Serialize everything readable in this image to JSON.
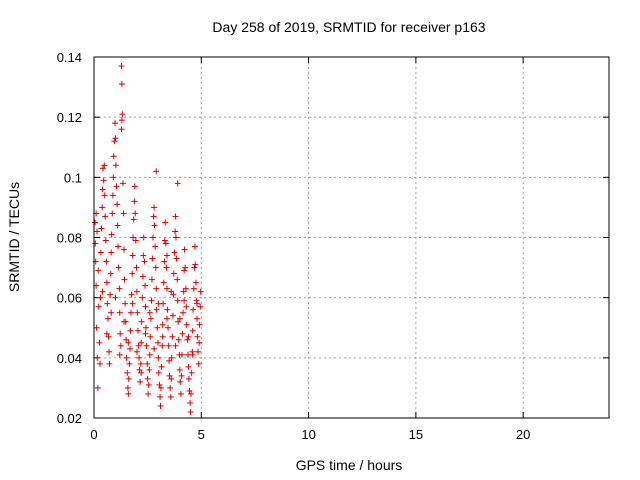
{
  "chart_data": {
    "type": "scatter",
    "title": "Day 258 of 2019, SRMTID for receiver p163",
    "xlabel": "GPS time / hours",
    "ylabel": "SRMTID / TECUs",
    "xlim": [
      0,
      24
    ],
    "ylim": [
      0.02,
      0.14
    ],
    "xticks": [
      0,
      5,
      10,
      15,
      20
    ],
    "xtick_labels": [
      "0",
      "5",
      "10",
      "15",
      "20"
    ],
    "yticks": [
      0.02,
      0.04,
      0.06,
      0.08,
      0.1,
      0.12,
      0.14
    ],
    "ytick_labels": [
      "0.02",
      "0.04",
      "0.06",
      "0.08",
      "0.1",
      "0.12",
      "0.14"
    ],
    "grid": true,
    "marker": "+",
    "color": "#dd0000",
    "series": [
      {
        "name": "p163",
        "points": [
          [
            0.05,
            0.085
          ],
          [
            0.08,
            0.072
          ],
          [
            0.1,
            0.064
          ],
          [
            0.12,
            0.05
          ],
          [
            0.15,
            0.04
          ],
          [
            0.18,
            0.03
          ],
          [
            0.06,
            0.078
          ],
          [
            0.1,
            0.088
          ],
          [
            0.14,
            0.082
          ],
          [
            0.2,
            0.069
          ],
          [
            0.22,
            0.057
          ],
          [
            0.25,
            0.045
          ],
          [
            0.28,
            0.038
          ],
          [
            0.3,
            0.06
          ],
          [
            0.32,
            0.075
          ],
          [
            0.35,
            0.083
          ],
          [
            0.38,
            0.09
          ],
          [
            0.4,
            0.096
          ],
          [
            0.42,
            0.103
          ],
          [
            0.45,
            0.099
          ],
          [
            0.48,
            0.104
          ],
          [
            0.5,
            0.094
          ],
          [
            0.52,
            0.087
          ],
          [
            0.55,
            0.079
          ],
          [
            0.58,
            0.072
          ],
          [
            0.6,
            0.065
          ],
          [
            0.62,
            0.058
          ],
          [
            0.65,
            0.053
          ],
          [
            0.68,
            0.047
          ],
          [
            0.7,
            0.042
          ],
          [
            0.72,
            0.038
          ],
          [
            0.75,
            0.061
          ],
          [
            0.78,
            0.068
          ],
          [
            0.8,
            0.075
          ],
          [
            0.82,
            0.081
          ],
          [
            0.85,
            0.088
          ],
          [
            0.88,
            0.094
          ],
          [
            0.9,
            0.1
          ],
          [
            0.92,
            0.107
          ],
          [
            0.95,
            0.112
          ],
          [
            0.98,
            0.118
          ],
          [
            1.0,
            0.113
          ],
          [
            1.02,
            0.104
          ],
          [
            1.05,
            0.097
          ],
          [
            1.08,
            0.091
          ],
          [
            1.1,
            0.084
          ],
          [
            1.12,
            0.077
          ],
          [
            1.15,
            0.07
          ],
          [
            1.18,
            0.063
          ],
          [
            1.2,
            0.055
          ],
          [
            1.22,
            0.048
          ],
          [
            1.25,
            0.044
          ],
          [
            1.28,
            0.116
          ],
          [
            1.3,
            0.119
          ],
          [
            1.32,
            0.121
          ],
          [
            1.3,
            0.131
          ],
          [
            1.28,
            0.137
          ],
          [
            1.35,
            0.098
          ],
          [
            1.38,
            0.088
          ],
          [
            1.4,
            0.076
          ],
          [
            1.42,
            0.066
          ],
          [
            1.45,
            0.058
          ],
          [
            1.48,
            0.052
          ],
          [
            1.5,
            0.046
          ],
          [
            1.52,
            0.04
          ],
          [
            1.55,
            0.035
          ],
          [
            1.58,
            0.03
          ],
          [
            1.6,
            0.028
          ],
          [
            1.62,
            0.033
          ],
          [
            1.65,
            0.038
          ],
          [
            1.68,
            0.043
          ],
          [
            1.7,
            0.049
          ],
          [
            1.72,
            0.055
          ],
          [
            1.75,
            0.061
          ],
          [
            1.78,
            0.068
          ],
          [
            1.8,
            0.074
          ],
          [
            1.82,
            0.08
          ],
          [
            1.85,
            0.086
          ],
          [
            1.88,
            0.092
          ],
          [
            1.9,
            0.097
          ],
          [
            1.92,
            0.088
          ],
          [
            1.95,
            0.079
          ],
          [
            1.98,
            0.07
          ],
          [
            2.0,
            0.062
          ],
          [
            2.02,
            0.055
          ],
          [
            2.05,
            0.049
          ],
          [
            2.08,
            0.044
          ],
          [
            2.1,
            0.04
          ],
          [
            2.12,
            0.036
          ],
          [
            2.15,
            0.032
          ],
          [
            2.18,
            0.038
          ],
          [
            2.2,
            0.045
          ],
          [
            2.22,
            0.052
          ],
          [
            2.25,
            0.06
          ],
          [
            2.28,
            0.067
          ],
          [
            2.3,
            0.074
          ],
          [
            2.32,
            0.08
          ],
          [
            2.35,
            0.072
          ],
          [
            2.38,
            0.064
          ],
          [
            2.4,
            0.057
          ],
          [
            2.42,
            0.05
          ],
          [
            2.45,
            0.044
          ],
          [
            2.48,
            0.038
          ],
          [
            2.5,
            0.033
          ],
          [
            2.52,
            0.028
          ],
          [
            2.55,
            0.031
          ],
          [
            2.58,
            0.036
          ],
          [
            2.6,
            0.041
          ],
          [
            2.62,
            0.047
          ],
          [
            2.65,
            0.053
          ],
          [
            2.68,
            0.059
          ],
          [
            2.7,
            0.066
          ],
          [
            2.72,
            0.073
          ],
          [
            2.75,
            0.08
          ],
          [
            2.78,
            0.087
          ],
          [
            2.8,
            0.09
          ],
          [
            2.82,
            0.084
          ],
          [
            2.85,
            0.077
          ],
          [
            2.88,
            0.07
          ],
          [
            2.9,
            0.063
          ],
          [
            2.92,
            0.056
          ],
          [
            2.95,
            0.05
          ],
          [
            2.98,
            0.045
          ],
          [
            3.0,
            0.04
          ],
          [
            3.02,
            0.035
          ],
          [
            3.05,
            0.031
          ],
          [
            3.08,
            0.027
          ],
          [
            3.1,
            0.024
          ],
          [
            3.12,
            0.03
          ],
          [
            3.15,
            0.037
          ],
          [
            3.18,
            0.044
          ],
          [
            3.2,
            0.051
          ],
          [
            3.22,
            0.058
          ],
          [
            3.25,
            0.065
          ],
          [
            3.28,
            0.072
          ],
          [
            3.3,
            0.079
          ],
          [
            3.32,
            0.085
          ],
          [
            3.35,
            0.078
          ],
          [
            3.38,
            0.07
          ],
          [
            3.4,
            0.063
          ],
          [
            3.42,
            0.056
          ],
          [
            3.45,
            0.05
          ],
          [
            3.48,
            0.044
          ],
          [
            3.5,
            0.039
          ],
          [
            3.52,
            0.034
          ],
          [
            3.55,
            0.03
          ],
          [
            3.58,
            0.027
          ],
          [
            3.6,
            0.033
          ],
          [
            3.62,
            0.04
          ],
          [
            3.65,
            0.047
          ],
          [
            3.68,
            0.054
          ],
          [
            3.7,
            0.061
          ],
          [
            3.72,
            0.068
          ],
          [
            3.75,
            0.075
          ],
          [
            3.78,
            0.082
          ],
          [
            3.8,
            0.087
          ],
          [
            3.82,
            0.08
          ],
          [
            3.85,
            0.073
          ],
          [
            3.88,
            0.066
          ],
          [
            3.9,
            0.059
          ],
          [
            3.92,
            0.052
          ],
          [
            3.95,
            0.046
          ],
          [
            3.98,
            0.041
          ],
          [
            4.0,
            0.036
          ],
          [
            4.02,
            0.032
          ],
          [
            4.05,
            0.028
          ],
          [
            4.08,
            0.034
          ],
          [
            4.1,
            0.041
          ],
          [
            4.12,
            0.048
          ],
          [
            4.15,
            0.055
          ],
          [
            4.18,
            0.062
          ],
          [
            4.2,
            0.069
          ],
          [
            4.22,
            0.076
          ],
          [
            4.25,
            0.07
          ],
          [
            4.28,
            0.063
          ],
          [
            4.3,
            0.057
          ],
          [
            4.32,
            0.051
          ],
          [
            4.35,
            0.046
          ],
          [
            4.38,
            0.041
          ],
          [
            4.4,
            0.037
          ],
          [
            4.42,
            0.033
          ],
          [
            4.45,
            0.029
          ],
          [
            4.48,
            0.025
          ],
          [
            4.5,
            0.022
          ],
          [
            4.52,
            0.028
          ],
          [
            4.55,
            0.035
          ],
          [
            4.58,
            0.042
          ],
          [
            4.6,
            0.049
          ],
          [
            4.62,
            0.056
          ],
          [
            4.65,
            0.063
          ],
          [
            4.68,
            0.07
          ],
          [
            4.7,
            0.077
          ],
          [
            4.72,
            0.071
          ],
          [
            4.75,
            0.065
          ],
          [
            4.78,
            0.059
          ],
          [
            4.8,
            0.053
          ],
          [
            4.82,
            0.047
          ],
          [
            4.85,
            0.042
          ],
          [
            4.88,
            0.038
          ],
          [
            4.9,
            0.045
          ],
          [
            4.92,
            0.051
          ],
          [
            4.95,
            0.057
          ],
          [
            4.97,
            0.062
          ],
          [
            0.4,
            0.062
          ],
          [
            0.6,
            0.048
          ],
          [
            0.8,
            0.055
          ],
          [
            1.0,
            0.06
          ],
          [
            1.2,
            0.041
          ],
          [
            1.4,
            0.052
          ],
          [
            1.6,
            0.045
          ],
          [
            1.8,
            0.058
          ],
          [
            2.0,
            0.042
          ],
          [
            2.2,
            0.035
          ],
          [
            2.4,
            0.048
          ],
          [
            2.6,
            0.055
          ],
          [
            2.8,
            0.043
          ],
          [
            3.0,
            0.058
          ],
          [
            3.2,
            0.047
          ],
          [
            3.4,
            0.053
          ],
          [
            3.6,
            0.062
          ],
          [
            3.8,
            0.044
          ],
          [
            4.0,
            0.053
          ],
          [
            4.2,
            0.059
          ],
          [
            4.4,
            0.047
          ],
          [
            4.6,
            0.041
          ],
          [
            4.8,
            0.058
          ],
          [
            3.9,
            0.098
          ],
          [
            3.4,
            0.074
          ],
          [
            2.9,
            0.102
          ]
        ]
      }
    ]
  }
}
